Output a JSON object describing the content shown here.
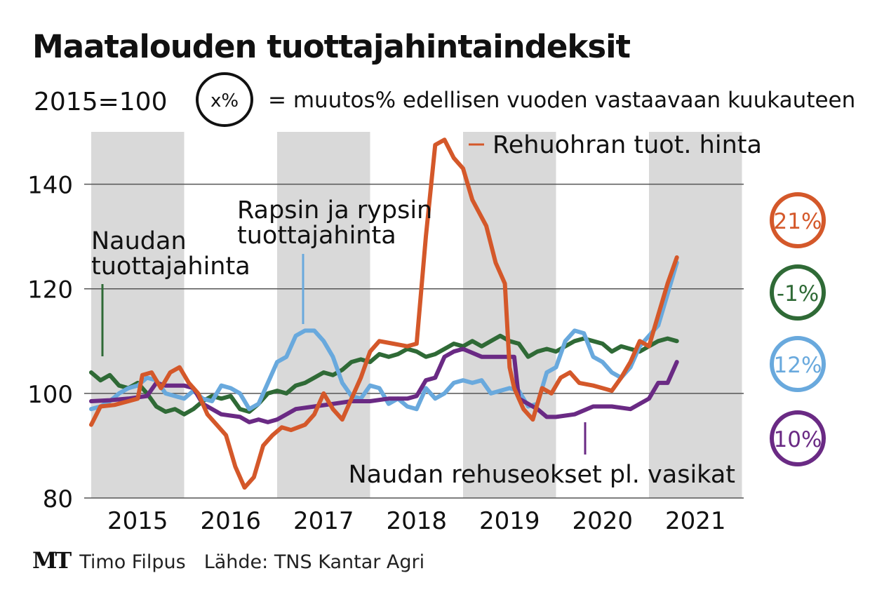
{
  "title": "Maatalouden tuottajahintaindeksit",
  "base_note": "2015=100",
  "legend_circle_text": "x%",
  "legend_text": "= muutos% edellisen vuoden vastaavaan kuukauteen",
  "footer": {
    "logo": "MT",
    "author": "Timo Filpus",
    "source": "Lähde: TNS Kantar Agri"
  },
  "colors": {
    "rehuohra": "#d4582a",
    "naudan": "#2f6a36",
    "rapsi": "#69a9dd",
    "rehuseos": "#6a2a84",
    "band": "#d9d9d9",
    "grid": "#555555"
  },
  "chart_data": {
    "type": "line",
    "ylim": [
      80,
      150
    ],
    "yticks": [
      80,
      100,
      120,
      140
    ],
    "x_labels": [
      "2015",
      "2016",
      "2017",
      "2018",
      "2019",
      "2020",
      "2021"
    ],
    "grid": "horizontal",
    "shaded_years": [
      "2015",
      "2017",
      "2019",
      "2021"
    ],
    "series": [
      {
        "id": "rehuohra",
        "name": "Rehuohran tuot. hinta",
        "change": "21%",
        "points": [
          [
            2015.0,
            94.0
          ],
          [
            2015.1,
            97.5
          ],
          [
            2015.25,
            97.8
          ],
          [
            2015.4,
            98.5
          ],
          [
            2015.5,
            99.0
          ],
          [
            2015.55,
            103.5
          ],
          [
            2015.65,
            104.0
          ],
          [
            2015.75,
            101.0
          ],
          [
            2015.85,
            104.0
          ],
          [
            2015.95,
            105.0
          ],
          [
            2016.05,
            102.0
          ],
          [
            2016.15,
            100.0
          ],
          [
            2016.25,
            96.0
          ],
          [
            2016.35,
            94.0
          ],
          [
            2016.45,
            92.0
          ],
          [
            2016.55,
            86.0
          ],
          [
            2016.65,
            82.0
          ],
          [
            2016.75,
            84.0
          ],
          [
            2016.85,
            90.0
          ],
          [
            2016.95,
            92.0
          ],
          [
            2017.05,
            93.5
          ],
          [
            2017.15,
            93.0
          ],
          [
            2017.3,
            94.0
          ],
          [
            2017.4,
            96.0
          ],
          [
            2017.5,
            100.0
          ],
          [
            2017.6,
            97.0
          ],
          [
            2017.7,
            95.0
          ],
          [
            2017.8,
            99.0
          ],
          [
            2017.9,
            103.0
          ],
          [
            2018.0,
            108.0
          ],
          [
            2018.1,
            110.0
          ],
          [
            2018.25,
            109.5
          ],
          [
            2018.4,
            109.0
          ],
          [
            2018.5,
            109.5
          ],
          [
            2018.6,
            130.0
          ],
          [
            2018.7,
            147.5
          ],
          [
            2018.8,
            148.5
          ],
          [
            2018.9,
            145.0
          ],
          [
            2019.0,
            143.0
          ],
          [
            2019.1,
            137.0
          ],
          [
            2019.25,
            132.0
          ],
          [
            2019.35,
            125.0
          ],
          [
            2019.45,
            121.0
          ],
          [
            2019.5,
            105.0
          ],
          [
            2019.55,
            101.0
          ],
          [
            2019.65,
            97.0
          ],
          [
            2019.75,
            95.0
          ],
          [
            2019.85,
            101.0
          ],
          [
            2019.95,
            100.0
          ],
          [
            2020.05,
            103.0
          ],
          [
            2020.15,
            104.0
          ],
          [
            2020.25,
            102.0
          ],
          [
            2020.4,
            101.5
          ],
          [
            2020.5,
            101.0
          ],
          [
            2020.6,
            100.5
          ],
          [
            2020.7,
            103.0
          ],
          [
            2020.8,
            106.0
          ],
          [
            2020.9,
            110.0
          ],
          [
            2021.0,
            109.0
          ],
          [
            2021.1,
            115.0
          ],
          [
            2021.2,
            121.0
          ],
          [
            2021.3,
            126.0
          ]
        ]
      },
      {
        "id": "naudan",
        "name": "Naudan tuottajahinta",
        "change": "-1%",
        "points": [
          [
            2015.0,
            104.0
          ],
          [
            2015.1,
            102.5
          ],
          [
            2015.2,
            103.5
          ],
          [
            2015.3,
            101.5
          ],
          [
            2015.4,
            101.0
          ],
          [
            2015.5,
            102.0
          ],
          [
            2015.6,
            100.0
          ],
          [
            2015.7,
            97.5
          ],
          [
            2015.8,
            96.5
          ],
          [
            2015.9,
            97.0
          ],
          [
            2016.0,
            96.0
          ],
          [
            2016.1,
            97.0
          ],
          [
            2016.2,
            98.5
          ],
          [
            2016.3,
            99.5
          ],
          [
            2016.4,
            99.0
          ],
          [
            2016.5,
            99.5
          ],
          [
            2016.6,
            97.0
          ],
          [
            2016.7,
            96.5
          ],
          [
            2016.8,
            98.0
          ],
          [
            2016.9,
            100.0
          ],
          [
            2017.0,
            100.5
          ],
          [
            2017.1,
            100.0
          ],
          [
            2017.2,
            101.5
          ],
          [
            2017.3,
            102.0
          ],
          [
            2017.4,
            103.0
          ],
          [
            2017.5,
            104.0
          ],
          [
            2017.6,
            103.5
          ],
          [
            2017.7,
            104.5
          ],
          [
            2017.8,
            106.0
          ],
          [
            2017.9,
            106.5
          ],
          [
            2018.0,
            106.0
          ],
          [
            2018.1,
            107.5
          ],
          [
            2018.2,
            107.0
          ],
          [
            2018.3,
            107.5
          ],
          [
            2018.4,
            108.5
          ],
          [
            2018.5,
            108.0
          ],
          [
            2018.6,
            107.0
          ],
          [
            2018.7,
            107.5
          ],
          [
            2018.8,
            108.5
          ],
          [
            2018.9,
            109.5
          ],
          [
            2019.0,
            109.0
          ],
          [
            2019.1,
            110.0
          ],
          [
            2019.2,
            109.0
          ],
          [
            2019.3,
            110.0
          ],
          [
            2019.4,
            111.0
          ],
          [
            2019.5,
            110.0
          ],
          [
            2019.6,
            109.5
          ],
          [
            2019.7,
            107.0
          ],
          [
            2019.8,
            108.0
          ],
          [
            2019.9,
            108.5
          ],
          [
            2020.0,
            108.0
          ],
          [
            2020.1,
            109.0
          ],
          [
            2020.2,
            110.0
          ],
          [
            2020.3,
            110.5
          ],
          [
            2020.4,
            110.0
          ],
          [
            2020.5,
            109.5
          ],
          [
            2020.6,
            108.0
          ],
          [
            2020.7,
            109.0
          ],
          [
            2020.8,
            108.5
          ],
          [
            2020.9,
            108.0
          ],
          [
            2021.0,
            109.0
          ],
          [
            2021.1,
            110.0
          ],
          [
            2021.2,
            110.5
          ],
          [
            2021.3,
            110.0
          ]
        ]
      },
      {
        "id": "rapsi",
        "name": "Rapsin ja rypsin tuottajahinta",
        "change": "12%",
        "points": [
          [
            2015.0,
            97.0
          ],
          [
            2015.1,
            97.5
          ],
          [
            2015.2,
            98.5
          ],
          [
            2015.3,
            100.0
          ],
          [
            2015.4,
            101.0
          ],
          [
            2015.5,
            101.5
          ],
          [
            2015.6,
            103.0
          ],
          [
            2015.7,
            102.5
          ],
          [
            2015.8,
            100.0
          ],
          [
            2015.9,
            99.5
          ],
          [
            2016.0,
            99.0
          ],
          [
            2016.1,
            100.5
          ],
          [
            2016.2,
            99.0
          ],
          [
            2016.3,
            98.5
          ],
          [
            2016.4,
            101.5
          ],
          [
            2016.5,
            101.0
          ],
          [
            2016.6,
            100.0
          ],
          [
            2016.7,
            97.0
          ],
          [
            2016.8,
            98.0
          ],
          [
            2016.9,
            102.0
          ],
          [
            2017.0,
            106.0
          ],
          [
            2017.1,
            107.0
          ],
          [
            2017.2,
            111.0
          ],
          [
            2017.3,
            112.0
          ],
          [
            2017.4,
            112.0
          ],
          [
            2017.5,
            110.0
          ],
          [
            2017.6,
            107.0
          ],
          [
            2017.7,
            102.0
          ],
          [
            2017.8,
            99.5
          ],
          [
            2017.9,
            99.0
          ],
          [
            2018.0,
            101.5
          ],
          [
            2018.1,
            101.0
          ],
          [
            2018.2,
            98.0
          ],
          [
            2018.3,
            99.0
          ],
          [
            2018.4,
            97.5
          ],
          [
            2018.5,
            97.0
          ],
          [
            2018.6,
            101.0
          ],
          [
            2018.7,
            99.0
          ],
          [
            2018.8,
            100.0
          ],
          [
            2018.9,
            102.0
          ],
          [
            2019.0,
            102.5
          ],
          [
            2019.1,
            102.0
          ],
          [
            2019.2,
            102.5
          ],
          [
            2019.3,
            100.0
          ],
          [
            2019.4,
            100.5
          ],
          [
            2019.5,
            101.0
          ],
          [
            2019.6,
            100.5
          ],
          [
            2019.7,
            97.5
          ],
          [
            2019.8,
            98.0
          ],
          [
            2019.9,
            104.0
          ],
          [
            2020.0,
            105.0
          ],
          [
            2020.1,
            110.0
          ],
          [
            2020.2,
            112.0
          ],
          [
            2020.3,
            111.5
          ],
          [
            2020.4,
            107.0
          ],
          [
            2020.5,
            106.0
          ],
          [
            2020.6,
            104.0
          ],
          [
            2020.7,
            103.0
          ],
          [
            2020.8,
            105.0
          ],
          [
            2020.9,
            109.0
          ],
          [
            2021.0,
            111.0
          ],
          [
            2021.1,
            113.0
          ],
          [
            2021.2,
            119.0
          ],
          [
            2021.3,
            125.0
          ]
        ]
      },
      {
        "id": "rehuseos",
        "name": "Naudan rehuseokset pl. vasikat",
        "change": "10%",
        "points": [
          [
            2015.0,
            98.5
          ],
          [
            2015.2,
            98.7
          ],
          [
            2015.4,
            99.0
          ],
          [
            2015.6,
            99.5
          ],
          [
            2015.7,
            102.0
          ],
          [
            2015.8,
            101.5
          ],
          [
            2016.0,
            101.5
          ],
          [
            2016.1,
            101.0
          ],
          [
            2016.2,
            98.0
          ],
          [
            2016.4,
            96.0
          ],
          [
            2016.6,
            95.5
          ],
          [
            2016.7,
            94.5
          ],
          [
            2016.8,
            95.0
          ],
          [
            2016.9,
            94.5
          ],
          [
            2017.0,
            95.0
          ],
          [
            2017.1,
            96.0
          ],
          [
            2017.2,
            97.0
          ],
          [
            2017.4,
            97.5
          ],
          [
            2017.6,
            98.0
          ],
          [
            2017.8,
            98.5
          ],
          [
            2018.0,
            98.5
          ],
          [
            2018.2,
            99.0
          ],
          [
            2018.4,
            99.0
          ],
          [
            2018.5,
            99.5
          ],
          [
            2018.6,
            102.5
          ],
          [
            2018.7,
            103.0
          ],
          [
            2018.8,
            107.0
          ],
          [
            2018.9,
            108.0
          ],
          [
            2019.0,
            108.5
          ],
          [
            2019.2,
            107.0
          ],
          [
            2019.4,
            107.0
          ],
          [
            2019.55,
            107.0
          ],
          [
            2019.6,
            99.0
          ],
          [
            2019.8,
            97.0
          ],
          [
            2019.9,
            95.5
          ],
          [
            2020.0,
            95.5
          ],
          [
            2020.2,
            96.0
          ],
          [
            2020.4,
            97.5
          ],
          [
            2020.6,
            97.5
          ],
          [
            2020.8,
            97.0
          ],
          [
            2020.9,
            98.0
          ],
          [
            2021.0,
            99.0
          ],
          [
            2021.1,
            102.0
          ],
          [
            2021.2,
            102.0
          ],
          [
            2021.3,
            106.0
          ]
        ]
      }
    ]
  }
}
